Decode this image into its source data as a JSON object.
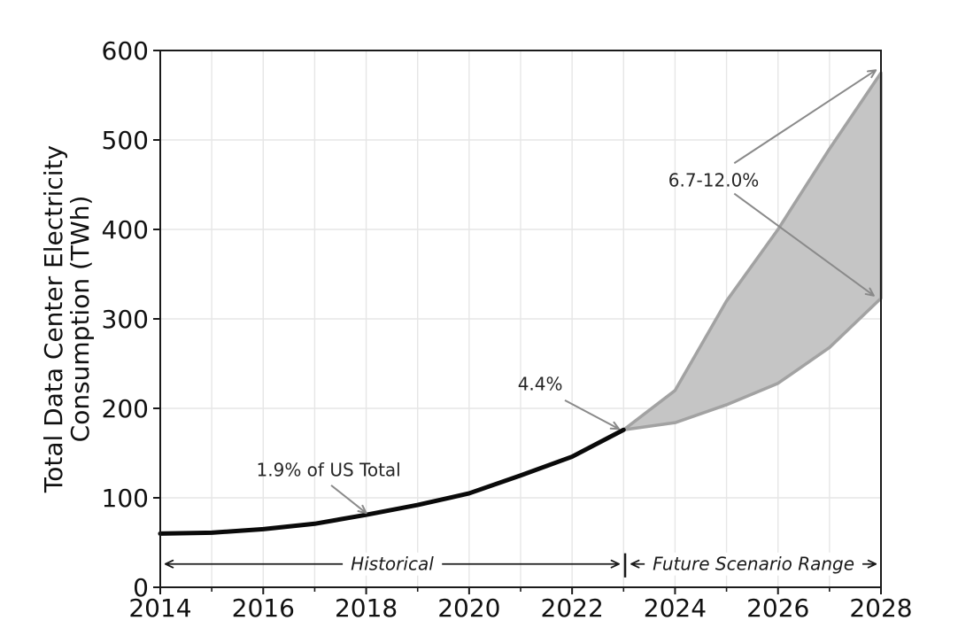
{
  "chart_data": {
    "type": "area",
    "title": "",
    "xlabel": "",
    "ylabel_lines": [
      "Total Data Center Electricity",
      "Consumption (TWh)"
    ],
    "xlim": [
      2014,
      2028
    ],
    "ylim": [
      0,
      600
    ],
    "x_major_ticks": [
      2014,
      2016,
      2018,
      2020,
      2022,
      2024,
      2026,
      2028
    ],
    "x_minor_ticks": [
      2015,
      2017,
      2019,
      2021,
      2023,
      2025,
      2027
    ],
    "y_ticks": [
      0,
      100,
      200,
      300,
      400,
      500,
      600
    ],
    "grid": true,
    "legend_position": "none",
    "series": [
      {
        "name": "Historical",
        "kind": "line",
        "x": [
          2014,
          2015,
          2016,
          2017,
          2018,
          2019,
          2020,
          2021,
          2022,
          2023
        ],
        "y": [
          60,
          61,
          65,
          71,
          81,
          92,
          105,
          125,
          146,
          176
        ]
      },
      {
        "name": "Future Scenario Range",
        "kind": "band",
        "x": [
          2023,
          2024,
          2025,
          2026,
          2027,
          2028
        ],
        "upper": [
          176,
          220,
          320,
          400,
          490,
          575
        ],
        "lower": [
          176,
          184,
          204,
          228,
          268,
          323
        ]
      }
    ],
    "annotations": [
      {
        "text": "1.9% of US Total",
        "tx": 2017.27,
        "ty": 131,
        "arrows": [
          {
            "x1": 2017.32,
            "y1": 114,
            "x2": 2018.0,
            "y2": 83
          }
        ]
      },
      {
        "text": "4.4%",
        "tx": 2021.38,
        "ty": 227,
        "arrows": [
          {
            "x1": 2021.86,
            "y1": 209,
            "x2": 2022.91,
            "y2": 177
          }
        ]
      },
      {
        "text": "6.7-12.0%",
        "tx": 2024.75,
        "ty": 455,
        "arrows": [
          {
            "x1": 2025.15,
            "y1": 474,
            "x2": 2027.9,
            "y2": 578
          },
          {
            "x1": 2025.15,
            "y1": 440,
            "x2": 2027.86,
            "y2": 326
          }
        ]
      }
    ],
    "range_labels": [
      {
        "text": "Historical",
        "x1": 2014.1,
        "x2": 2022.91,
        "y": 26
      },
      {
        "text": "Future Scenario Range",
        "x1": 2023.15,
        "x2": 2027.9,
        "y": 26
      }
    ],
    "divider": {
      "x": 2023.03,
      "y1": 11,
      "y2": 38
    }
  },
  "colors": {
    "background": "#ffffff",
    "historical_line": "#0a0a0a",
    "band_fill": "#c5c5c5",
    "band_edge": "#a2a2a2",
    "grid": "#e6e6e6",
    "axis": "#1a1a1a",
    "tick_label": "#111111",
    "annotation_text": "#262626",
    "annotation_arrow": "#8a8a8a",
    "range_label": "#1a1a1a"
  }
}
